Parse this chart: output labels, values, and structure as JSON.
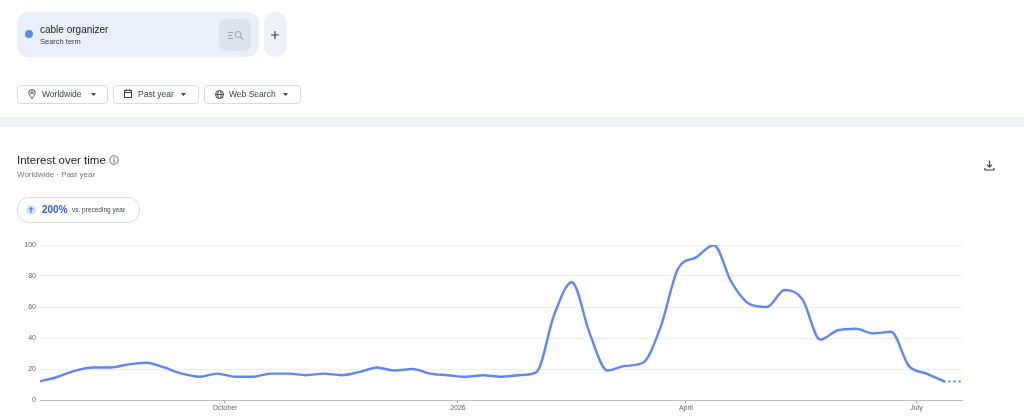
{
  "chart_data": {
    "type": "line",
    "title": "Interest over time",
    "subtitle": "Worldwide · Past year",
    "annotations": [
      "Search term",
      "Worldwide",
      "Past year",
      "Web Search",
      "200%",
      "vs. preceding year"
    ],
    "series": [
      {
        "name": "cable organizer",
        "color": "#6287ea",
        "x": [
          "2025-07-20",
          "2025-07-27",
          "2025-08-03",
          "2025-08-10",
          "2025-08-17",
          "2025-08-24",
          "2025-08-31",
          "2025-09-07",
          "2025-09-14",
          "2025-09-21",
          "2025-09-28",
          "2025-10-05",
          "2025-10-12",
          "2025-10-19",
          "2025-10-26",
          "2025-11-02",
          "2025-11-09",
          "2025-11-16",
          "2025-11-23",
          "2025-11-30",
          "2025-12-07",
          "2025-12-14",
          "2025-12-21",
          "2025-12-28",
          "2026-01-04",
          "2026-01-11",
          "2026-01-18",
          "2026-01-25",
          "2026-02-01",
          "2026-02-08",
          "2026-02-15",
          "2026-02-22",
          "2026-03-01",
          "2026-03-08",
          "2026-03-15",
          "2026-03-22",
          "2026-03-29",
          "2026-04-05",
          "2026-04-12",
          "2026-04-19",
          "2026-04-26",
          "2026-05-03",
          "2026-05-10",
          "2026-05-17",
          "2026-05-24",
          "2026-05-31",
          "2026-06-07",
          "2026-06-14",
          "2026-06-21",
          "2026-06-28",
          "2026-07-05",
          "2026-07-12"
        ],
        "values": [
          12,
          15,
          19,
          21,
          21,
          23,
          24,
          21,
          17,
          15,
          17,
          15,
          15,
          17,
          17,
          16,
          17,
          16,
          18,
          21,
          19,
          20,
          17,
          16,
          15,
          16,
          15,
          16,
          18,
          55,
          76,
          43,
          19,
          22,
          24,
          47,
          85,
          92,
          100,
          76,
          62,
          60,
          71,
          65,
          39,
          45,
          46,
          43,
          44,
          22,
          17,
          12
        ]
      },
      {
        "color": "#6287ea",
        "x": [
          "2026-07-12",
          "2026-07-19"
        ],
        "values": [
          12,
          12
        ],
        "line_style": "dotted"
      }
    ],
    "xlim": [
      "2025-07-20",
      "2026-07-19"
    ],
    "xticks": [
      {
        "value": "2025-10-01",
        "label": "October"
      },
      {
        "value": "2026-01-01",
        "label": "2026"
      },
      {
        "value": "2026-04-01",
        "label": "April"
      },
      {
        "value": "2026-07-01",
        "label": "July"
      }
    ],
    "ylim": [
      0,
      100
    ],
    "yticks": [
      0,
      20,
      40,
      60,
      80,
      100
    ],
    "grid": "y",
    "legend": "top left"
  }
}
